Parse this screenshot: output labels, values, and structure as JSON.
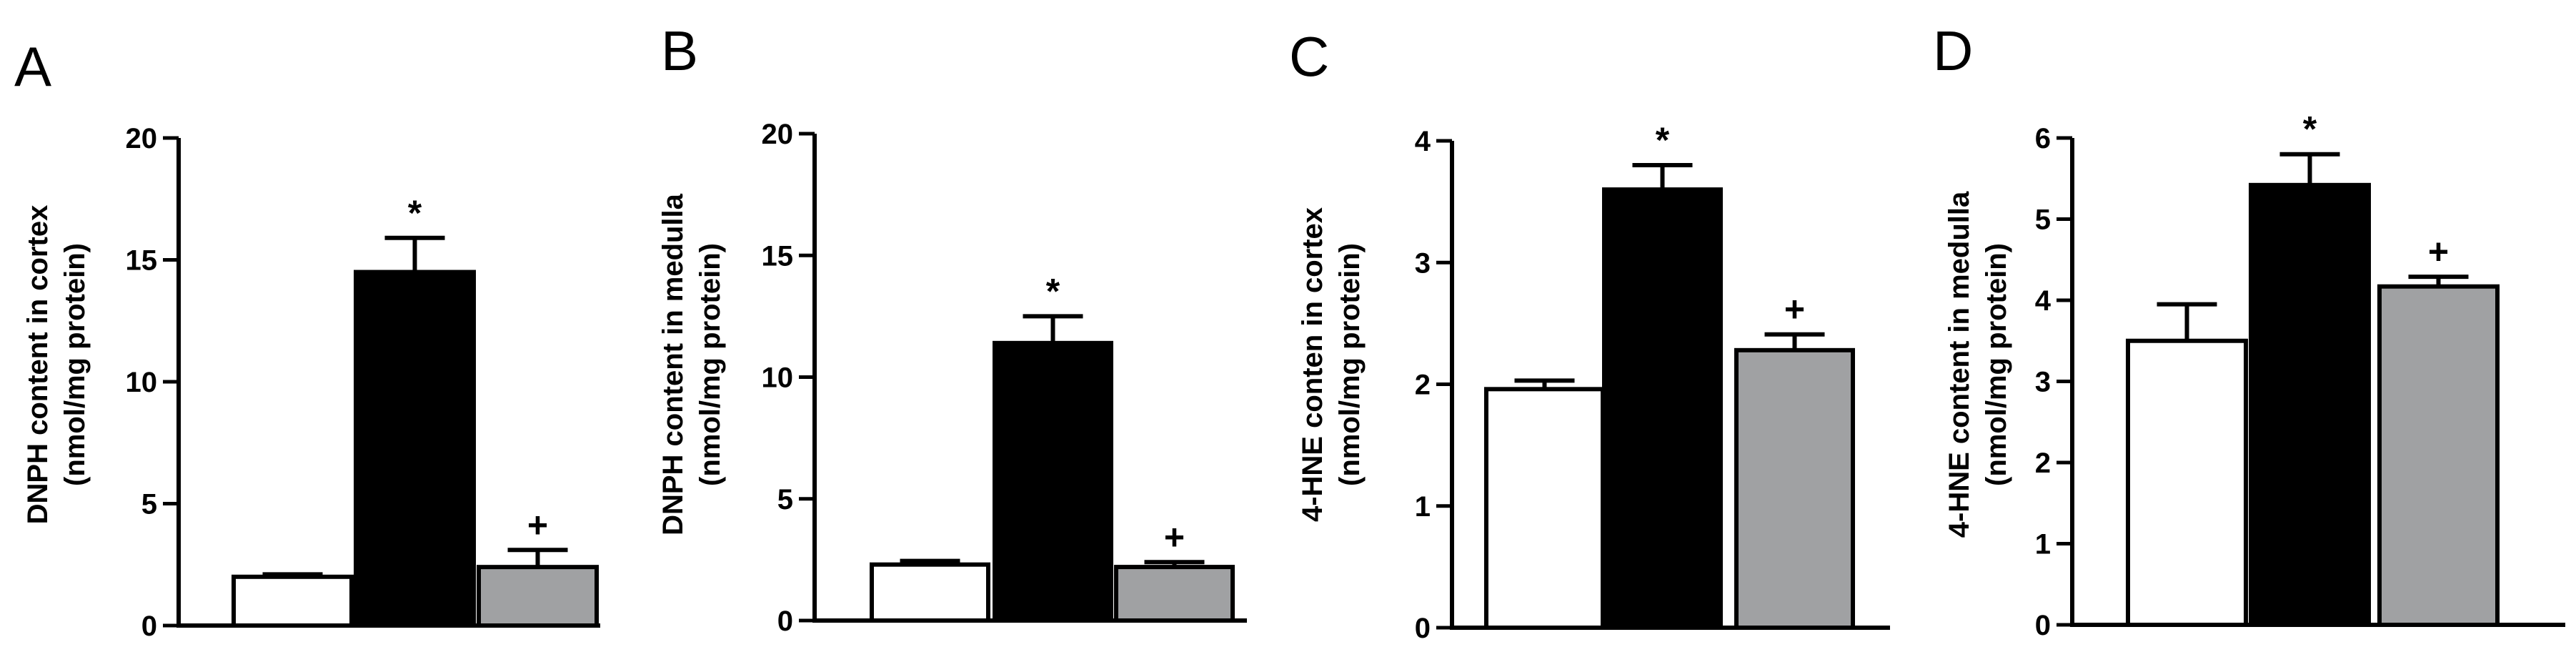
{
  "panel_colors": [
    "#ffffff",
    "#000000",
    "#a0a1a3"
  ],
  "chart_data": [
    {
      "type": "bar",
      "panel_label": "A",
      "ylabel_line1": "DNPH content in cortex",
      "ylabel_line2": "(nmol/mg protein)",
      "ylim": [
        0,
        20
      ],
      "yticks": [
        0,
        5,
        10,
        15,
        20
      ],
      "series": [
        {
          "values": [
            2.0
          ],
          "error": [
            0.1
          ],
          "color": "#ffffff"
        },
        {
          "values": [
            14.5
          ],
          "error": [
            1.4
          ],
          "color": "#000000",
          "annotation": "*"
        },
        {
          "values": [
            2.4
          ],
          "error": [
            0.7
          ],
          "color": "#a0a1a3",
          "annotation": "+"
        }
      ]
    },
    {
      "type": "bar",
      "panel_label": "B",
      "ylabel_line1": "DNPH content in medulla",
      "ylabel_line2": "(nmol/mg protein)",
      "ylim": [
        0,
        20
      ],
      "yticks": [
        0,
        5,
        10,
        15,
        20
      ],
      "series": [
        {
          "values": [
            2.3
          ],
          "error": [
            0.15
          ],
          "color": "#ffffff"
        },
        {
          "values": [
            11.4
          ],
          "error": [
            1.1
          ],
          "color": "#000000",
          "annotation": "*"
        },
        {
          "values": [
            2.2
          ],
          "error": [
            0.2
          ],
          "color": "#a0a1a3",
          "annotation": "+"
        }
      ]
    },
    {
      "type": "bar",
      "panel_label": "C",
      "ylabel_line1": "4-HNE conten in cortex",
      "ylabel_line2": "(nmol/mg protein)",
      "ylim": [
        0,
        4
      ],
      "yticks": [
        0,
        1,
        2,
        3,
        4
      ],
      "series": [
        {
          "values": [
            1.96
          ],
          "error": [
            0.07
          ],
          "color": "#ffffff"
        },
        {
          "values": [
            3.6
          ],
          "error": [
            0.2
          ],
          "color": "#000000",
          "annotation": "*"
        },
        {
          "values": [
            2.28
          ],
          "error": [
            0.13
          ],
          "color": "#a0a1a3",
          "annotation": "+"
        }
      ]
    },
    {
      "type": "bar",
      "panel_label": "D",
      "ylabel_line1": "4-HNE content in medulla",
      "ylabel_line2": "(nmol/mg protein)",
      "ylim": [
        0,
        6
      ],
      "yticks": [
        0,
        1,
        2,
        3,
        4,
        5,
        6
      ],
      "series": [
        {
          "values": [
            3.5
          ],
          "error": [
            0.45
          ],
          "color": "#ffffff"
        },
        {
          "values": [
            5.42
          ],
          "error": [
            0.38
          ],
          "color": "#000000",
          "annotation": "*"
        },
        {
          "values": [
            4.17
          ],
          "error": [
            0.12
          ],
          "color": "#a0a1a3",
          "annotation": "+"
        }
      ]
    }
  ]
}
